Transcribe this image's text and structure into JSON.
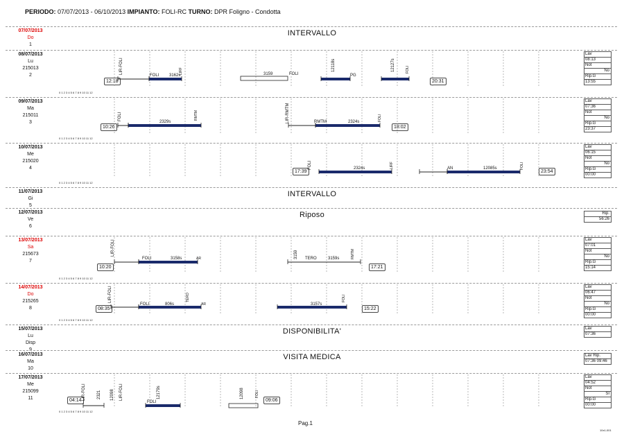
{
  "header": {
    "periodo_label": "PERIODO:",
    "periodo": "07/07/2013 - 06/10/2013",
    "impianto_label": "IMPIANTO:",
    "impianto": "FOLI-RC",
    "turno_label": "TURNO:",
    "turno": "DPR Foligno - Condotta"
  },
  "tick_scale": "0 1 2 3 4 5 6 7 8 9 10 11 12",
  "days": [
    {
      "date": "07/07/2013",
      "dow": "Do",
      "code": "",
      "num": "1",
      "red": true,
      "center": "INTERVALLO"
    },
    {
      "date": "08/07/2013",
      "dow": "Lu",
      "code": "215013",
      "num": "2",
      "red": false,
      "center": "",
      "start": "12:18",
      "end": "20:31",
      "side": {
        "lav": "Lav",
        "lav_v": "08:13",
        "not": "Not",
        "not_v": "No",
        "rip": "Rip.G",
        "rip_v": "13:55"
      }
    },
    {
      "date": "09/07/2013",
      "dow": "Ma",
      "code": "215011",
      "num": "3",
      "red": false,
      "center": "",
      "start": "10:26",
      "end": "18:02",
      "side": {
        "lav": "Lav",
        "lav_v": "07:36",
        "not": "Not",
        "not_v": "No",
        "rip": "Rip.G",
        "rip_v": "23:37"
      }
    },
    {
      "date": "10/07/2013",
      "dow": "Me",
      "code": "215020",
      "num": "4",
      "red": false,
      "center": "",
      "start": "17:39",
      "end": "23:54",
      "side": {
        "lav": "Lav",
        "lav_v": "06:15",
        "not": "Not",
        "not_v": "No",
        "rip": "Rip.G",
        "rip_v": "00:00"
      }
    },
    {
      "date": "11/07/2013",
      "dow": "Gi",
      "code": "",
      "num": "5",
      "red": false,
      "center": "INTERVALLO"
    },
    {
      "date": "12/07/2013",
      "dow": "Ve",
      "code": "",
      "num": "6",
      "red": false,
      "center": "Riposo",
      "side_rip": {
        "label": "Rip.",
        "value": "56:26"
      }
    },
    {
      "date": "13/07/2013",
      "dow": "Sa",
      "code": "215673",
      "num": "7",
      "red": true,
      "center": "",
      "start": "10:20",
      "end": "17:21",
      "side": {
        "lav": "Lav",
        "lav_v": "07:01",
        "not": "Not",
        "not_v": "No",
        "rip": "Rip.G",
        "rip_v": "15:14"
      }
    },
    {
      "date": "14/07/2013",
      "dow": "Do",
      "code": "215265",
      "num": "8",
      "red": true,
      "center": "",
      "start": "08:35",
      "end": "15:22",
      "side": {
        "lav": "Lav",
        "lav_v": "06:47",
        "not": "Not",
        "not_v": "No",
        "rip": "Rip.G",
        "rip_v": "00:00"
      }
    },
    {
      "date": "15/07/2013",
      "dow": "Lu",
      "code": "Disp",
      "num": "9",
      "red": false,
      "center": "DISPONIBILITA'",
      "side_lav": {
        "label": "Lav",
        "value": "07:36"
      }
    },
    {
      "date": "16/07/2013",
      "dow": "Ma",
      "code": "",
      "num": "10",
      "red": false,
      "center": "VISITA MEDICA",
      "side_two": {
        "l1": "Lav",
        "l2": "Rip.",
        "v1": "07:36",
        "v2": "09:46"
      }
    },
    {
      "date": "17/07/2013",
      "dow": "Me",
      "code": "215099",
      "num": "11",
      "red": false,
      "center": "",
      "start": "04:14",
      "end": "09:06",
      "side": {
        "lav": "Lav",
        "lav_v": "04:52",
        "not": "Not",
        "not_v": "SI",
        "rip": "Rip.G",
        "rip_v": "00:00"
      }
    }
  ],
  "trains": {
    "r2": {
      "a": "LIR-FOLI",
      "b": "FOLI",
      "c": "3162s",
      "d": "LIRF",
      "e": "3159",
      "f": "FOLI",
      "g": "12118s",
      "h": "PG",
      "i": "12127s",
      "j": "FOLI"
    },
    "r3": {
      "a": "FOLI",
      "b": "2329s",
      "c": "RMTM",
      "d": "LIR-RMTM",
      "e": "RMTM",
      "f": "2324s",
      "g": "FOLI"
    },
    "r4": {
      "a": "FOLI",
      "b": "2324s",
      "c": "LIRF",
      "d": "AN",
      "e": "12085s",
      "f": "FOLI"
    },
    "r7": {
      "a": "LIR-FOLI",
      "b": "FOLI",
      "c": "3158s",
      "d": "AR",
      "e": "3159",
      "f": "TERO",
      "g": "3159s",
      "h": "RMTM"
    },
    "r8": {
      "a": "LIR-FOLI",
      "b": "FOLI",
      "c": "806s",
      "d": "TERO",
      "e": "AR",
      "f": "3157s",
      "g": "FOLI"
    },
    "r11": {
      "a": "LIR-FOLI",
      "b": "2321",
      "c": "12098",
      "d": "LIR-FOLI",
      "e": "FOLI",
      "f": "12179s",
      "g": "12098",
      "h": "FOLI"
    }
  },
  "footer": {
    "page": "Pag.1",
    "tiny": "10x1-001"
  }
}
